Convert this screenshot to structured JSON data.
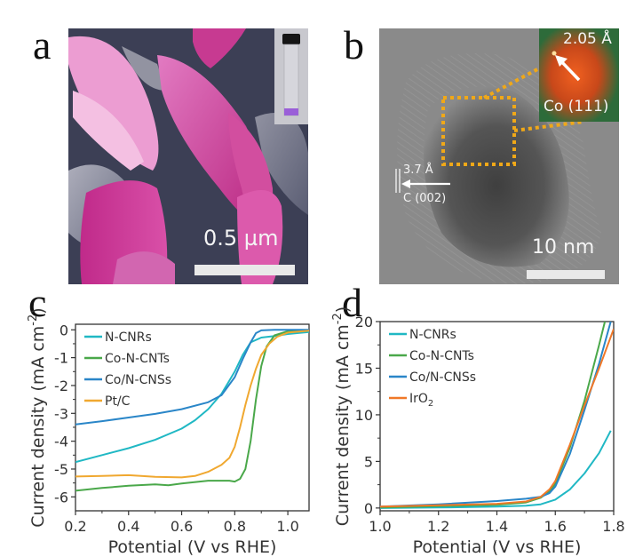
{
  "figure": {
    "panels": [
      {
        "letter": "a",
        "type": "SEM micrograph (false-colored)",
        "scale_bar": "0.5 µm",
        "inset": "vial with purple dispersion"
      },
      {
        "letter": "b",
        "type": "HRTEM image",
        "scale_bar": "10 nm",
        "annotations": {
          "lattice_carbon_spacing": "3.7 Å",
          "lattice_carbon_plane": "C (002)",
          "fft_spacing": "2.05 Å",
          "fft_plane": "Co (111)"
        }
      },
      {
        "letter": "c"
      },
      {
        "letter": "d"
      }
    ],
    "colors": {
      "sem_pink": "#c8308f",
      "sem_light_pink": "#e8a0cf",
      "sem_background": "#3c3f55",
      "vial_liquid": "#9a5fd8",
      "tem_gray": "#7a7a7a",
      "fft_green": "#2d6b3a",
      "fft_orange": "#e0501a",
      "highlight_box": "#f0a818"
    }
  },
  "chart_data": [
    {
      "panel": "c",
      "type": "line",
      "title": "",
      "xlabel": "Potential (V vs RHE)",
      "ylabel": "Current density (mA cm-2)",
      "ylabel_parts": {
        "main": "Current density (mA cm",
        "sup": "-2",
        "close": ")"
      },
      "xlim": [
        0.2,
        1.08
      ],
      "ylim": [
        -6.5,
        0.2
      ],
      "xticks": [
        0.2,
        0.4,
        0.6,
        0.8,
        1.0
      ],
      "xtick_labels": [
        "0.2",
        "0.4",
        "0.6",
        "0.8",
        "1.0"
      ],
      "yticks": [
        0,
        -1,
        -2,
        -3,
        -4,
        -5,
        -6
      ],
      "ytick_labels": [
        "0",
        "-1",
        "-2",
        "-3",
        "-4",
        "-5",
        "-6"
      ],
      "grid": false,
      "legend": "top-left",
      "series": [
        {
          "name": "N-CNRs",
          "color": "#20b8c4",
          "x": [
            0.2,
            0.3,
            0.4,
            0.5,
            0.6,
            0.65,
            0.7,
            0.75,
            0.8,
            0.83,
            0.86,
            0.9,
            0.95,
            1.0,
            1.08
          ],
          "y": [
            -4.75,
            -4.5,
            -4.25,
            -3.95,
            -3.55,
            -3.25,
            -2.85,
            -2.3,
            -1.5,
            -0.9,
            -0.45,
            -0.28,
            -0.22,
            -0.15,
            -0.08
          ]
        },
        {
          "name": "Co-N-CNTs",
          "color": "#4aa84a",
          "x": [
            0.2,
            0.3,
            0.4,
            0.5,
            0.55,
            0.6,
            0.7,
            0.78,
            0.8,
            0.82,
            0.84,
            0.86,
            0.88,
            0.9,
            0.92,
            0.95,
            1.0,
            1.08
          ],
          "y": [
            -5.78,
            -5.68,
            -5.6,
            -5.55,
            -5.58,
            -5.52,
            -5.42,
            -5.42,
            -5.45,
            -5.35,
            -5.0,
            -4.0,
            -2.5,
            -1.3,
            -0.6,
            -0.2,
            -0.05,
            -0.02
          ]
        },
        {
          "name": "Co/N-CNSs",
          "color": "#2a86c8",
          "x": [
            0.2,
            0.3,
            0.4,
            0.5,
            0.6,
            0.7,
            0.75,
            0.8,
            0.83,
            0.86,
            0.88,
            0.9,
            0.95,
            1.0,
            1.08
          ],
          "y": [
            -3.4,
            -3.28,
            -3.15,
            -3.02,
            -2.85,
            -2.6,
            -2.35,
            -1.7,
            -1.05,
            -0.45,
            -0.12,
            -0.02,
            0.0,
            0.0,
            0.0
          ]
        },
        {
          "name": "Pt/C",
          "color": "#f0a830",
          "x": [
            0.2,
            0.3,
            0.4,
            0.5,
            0.6,
            0.65,
            0.7,
            0.75,
            0.78,
            0.8,
            0.82,
            0.84,
            0.86,
            0.88,
            0.9,
            0.93,
            0.96,
            1.0,
            1.08
          ],
          "y": [
            -5.27,
            -5.25,
            -5.22,
            -5.28,
            -5.3,
            -5.25,
            -5.1,
            -4.85,
            -4.6,
            -4.2,
            -3.5,
            -2.7,
            -2.0,
            -1.4,
            -0.9,
            -0.5,
            -0.25,
            -0.1,
            -0.03
          ]
        }
      ]
    },
    {
      "panel": "d",
      "type": "line",
      "title": "",
      "xlabel": "Potential (V vs RHE)",
      "ylabel": "Current density (mA cm-2)",
      "ylabel_parts": {
        "main": "Current density (mA cm",
        "sup": "-2",
        "close": ")"
      },
      "xlim": [
        1.0,
        1.8
      ],
      "ylim": [
        -0.3,
        20
      ],
      "xticks": [
        1.0,
        1.2,
        1.4,
        1.6,
        1.8
      ],
      "xtick_labels": [
        "1.0",
        "1.2",
        "1.4",
        "1.6",
        "1.8"
      ],
      "yticks": [
        0,
        5,
        10,
        15,
        20
      ],
      "ytick_labels": [
        "0",
        "5",
        "10",
        "15",
        "20"
      ],
      "grid": false,
      "legend": "top-left",
      "series": [
        {
          "name": "N-CNRs",
          "label_main": "N-CNRs",
          "label_sub": "",
          "color": "#20b8c4",
          "x": [
            1.0,
            1.2,
            1.4,
            1.5,
            1.55,
            1.6,
            1.65,
            1.7,
            1.75,
            1.79
          ],
          "y": [
            0.0,
            0.05,
            0.15,
            0.25,
            0.4,
            0.9,
            2.0,
            3.7,
            5.9,
            8.3
          ]
        },
        {
          "name": "Co-N-CNTs",
          "label_main": "Co-N-CNTs",
          "label_sub": "",
          "color": "#4aa84a",
          "x": [
            1.0,
            1.2,
            1.4,
            1.5,
            1.55,
            1.58,
            1.6,
            1.65,
            1.7,
            1.75,
            1.77
          ],
          "y": [
            0.05,
            0.2,
            0.35,
            0.6,
            1.1,
            1.8,
            2.6,
            6.5,
            11.5,
            17.5,
            20.0
          ]
        },
        {
          "name": "Co/N-CNSs",
          "label_main": "Co/N-CNSs",
          "label_sub": "",
          "color": "#2a86c8",
          "x": [
            1.0,
            1.2,
            1.4,
            1.5,
            1.55,
            1.58,
            1.6,
            1.65,
            1.7,
            1.75,
            1.79
          ],
          "y": [
            0.15,
            0.4,
            0.75,
            1.0,
            1.2,
            1.6,
            2.3,
            5.8,
            10.5,
            15.5,
            20.0
          ]
        },
        {
          "name": "IrO2",
          "label_main": "IrO",
          "label_sub": "2",
          "color": "#f07828",
          "x": [
            1.0,
            1.2,
            1.4,
            1.5,
            1.55,
            1.58,
            1.6,
            1.65,
            1.7,
            1.75,
            1.8
          ],
          "y": [
            0.15,
            0.3,
            0.45,
            0.7,
            1.2,
            2.0,
            2.9,
            6.8,
            11.0,
            15.0,
            19.2
          ]
        }
      ]
    }
  ]
}
